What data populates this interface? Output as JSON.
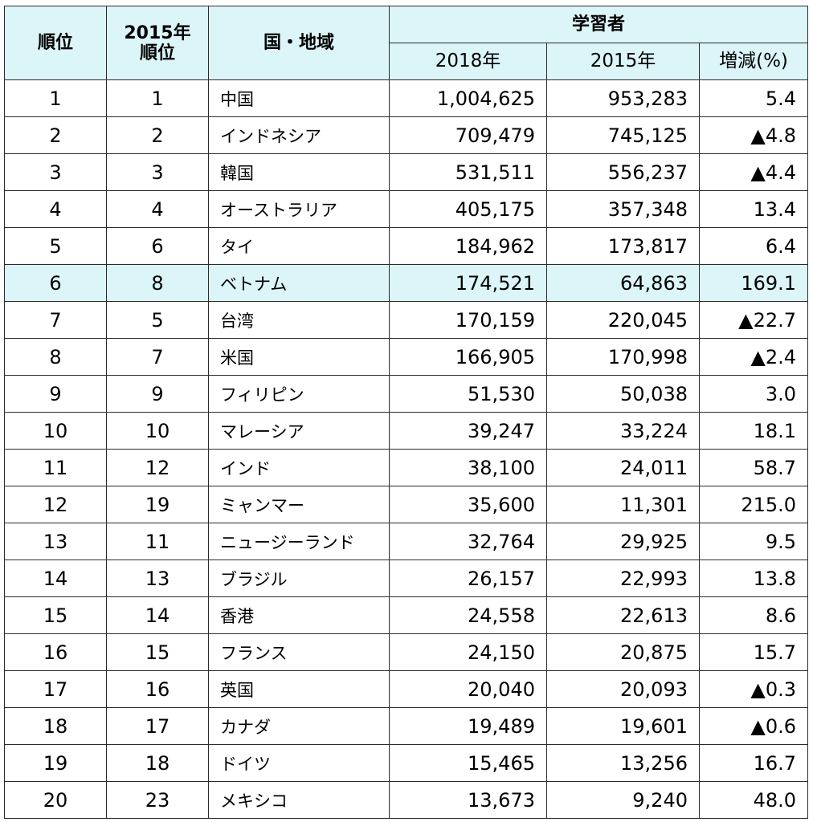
{
  "chart_data": {
    "type": "table",
    "columns": {
      "rank": "順位",
      "rank_2015": [
        "2015年",
        "順位"
      ],
      "region": "国・地域",
      "learners": "学習者",
      "learners_2018": "2018年",
      "learners_2015": "2015年",
      "change_pct": "増減(%)"
    },
    "colors": {
      "header_bg": "#dcf5f8",
      "highlight_bg": "#dcf5f8",
      "border": "#2b2b2b"
    },
    "rows": [
      {
        "rank": "1",
        "rank_2015": "1",
        "region": "中国",
        "learners_2018": "1,004,625",
        "learners_2015": "953,283",
        "change_pct": "5.4"
      },
      {
        "rank": "2",
        "rank_2015": "2",
        "region": "インドネシア",
        "learners_2018": "709,479",
        "learners_2015": "745,125",
        "change_pct": "▲4.8"
      },
      {
        "rank": "3",
        "rank_2015": "3",
        "region": "韓国",
        "learners_2018": "531,511",
        "learners_2015": "556,237",
        "change_pct": "▲4.4"
      },
      {
        "rank": "4",
        "rank_2015": "4",
        "region": "オーストラリア",
        "learners_2018": "405,175",
        "learners_2015": "357,348",
        "change_pct": "13.4"
      },
      {
        "rank": "5",
        "rank_2015": "6",
        "region": "タイ",
        "learners_2018": "184,962",
        "learners_2015": "173,817",
        "change_pct": "6.4"
      },
      {
        "rank": "6",
        "rank_2015": "8",
        "region": "ベトナム",
        "learners_2018": "174,521",
        "learners_2015": "64,863",
        "change_pct": "169.1",
        "highlight": true
      },
      {
        "rank": "7",
        "rank_2015": "5",
        "region": "台湾",
        "learners_2018": "170,159",
        "learners_2015": "220,045",
        "change_pct": "▲22.7"
      },
      {
        "rank": "8",
        "rank_2015": "7",
        "region": "米国",
        "learners_2018": "166,905",
        "learners_2015": "170,998",
        "change_pct": "▲2.4"
      },
      {
        "rank": "9",
        "rank_2015": "9",
        "region": "フィリピン",
        "learners_2018": "51,530",
        "learners_2015": "50,038",
        "change_pct": "3.0"
      },
      {
        "rank": "10",
        "rank_2015": "10",
        "region": "マレーシア",
        "learners_2018": "39,247",
        "learners_2015": "33,224",
        "change_pct": "18.1"
      },
      {
        "rank": "11",
        "rank_2015": "12",
        "region": "インド",
        "learners_2018": "38,100",
        "learners_2015": "24,011",
        "change_pct": "58.7"
      },
      {
        "rank": "12",
        "rank_2015": "19",
        "region": "ミャンマー",
        "learners_2018": "35,600",
        "learners_2015": "11,301",
        "change_pct": "215.0"
      },
      {
        "rank": "13",
        "rank_2015": "11",
        "region": "ニュージーランド",
        "learners_2018": "32,764",
        "learners_2015": "29,925",
        "change_pct": "9.5"
      },
      {
        "rank": "14",
        "rank_2015": "13",
        "region": "ブラジル",
        "learners_2018": "26,157",
        "learners_2015": "22,993",
        "change_pct": "13.8"
      },
      {
        "rank": "15",
        "rank_2015": "14",
        "region": "香港",
        "learners_2018": "24,558",
        "learners_2015": "22,613",
        "change_pct": "8.6"
      },
      {
        "rank": "16",
        "rank_2015": "15",
        "region": "フランス",
        "learners_2018": "24,150",
        "learners_2015": "20,875",
        "change_pct": "15.7"
      },
      {
        "rank": "17",
        "rank_2015": "16",
        "region": "英国",
        "learners_2018": "20,040",
        "learners_2015": "20,093",
        "change_pct": "▲0.3"
      },
      {
        "rank": "18",
        "rank_2015": "17",
        "region": "カナダ",
        "learners_2018": "19,489",
        "learners_2015": "19,601",
        "change_pct": "▲0.6"
      },
      {
        "rank": "19",
        "rank_2015": "18",
        "region": "ドイツ",
        "learners_2018": "15,465",
        "learners_2015": "13,256",
        "change_pct": "16.7"
      },
      {
        "rank": "20",
        "rank_2015": "23",
        "region": "メキシコ",
        "learners_2018": "13,673",
        "learners_2015": "9,240",
        "change_pct": "48.0"
      }
    ]
  }
}
